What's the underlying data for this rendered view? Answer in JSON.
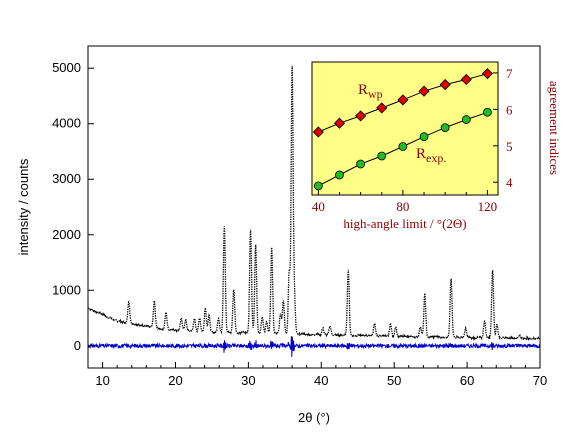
{
  "chart_data": [
    {
      "type": "line",
      "xlabel": "2θ (°)",
      "ylabel": "intensity / counts",
      "xlim": [
        8,
        70
      ],
      "ylim": [
        -400,
        5400
      ],
      "x_ticks": [
        10,
        20,
        30,
        40,
        50,
        60,
        70
      ],
      "y_ticks": [
        0,
        1000,
        2000,
        3000,
        4000,
        5000
      ],
      "grid": false,
      "series": [
        {
          "color": "#000000",
          "style": "dotted",
          "baseline": [
            [
              8,
              680
            ],
            [
              9,
              620
            ],
            [
              10,
              560
            ],
            [
              11,
              500
            ],
            [
              12,
              450
            ],
            [
              14,
              400
            ],
            [
              16,
              350
            ],
            [
              18,
              310
            ],
            [
              20,
              280
            ],
            [
              22,
              265
            ],
            [
              24,
              255
            ],
            [
              26,
              245
            ],
            [
              28,
              240
            ],
            [
              30,
              240
            ],
            [
              32,
              235
            ],
            [
              34,
              225
            ],
            [
              36,
              215
            ],
            [
              38,
              205
            ],
            [
              40,
              200
            ],
            [
              45,
              185
            ],
            [
              50,
              170
            ],
            [
              55,
              160
            ],
            [
              60,
              150
            ],
            [
              65,
              140
            ],
            [
              70,
              130
            ]
          ],
          "peaks": [
            [
              13.6,
              390
            ],
            [
              17.1,
              470
            ],
            [
              18.7,
              300
            ],
            [
              20.8,
              220
            ],
            [
              21.4,
              200
            ],
            [
              22.6,
              230
            ],
            [
              23.3,
              240
            ],
            [
              24.1,
              430
            ],
            [
              24.6,
              300
            ],
            [
              25.9,
              260
            ],
            [
              26.7,
              1920
            ],
            [
              28.0,
              780
            ],
            [
              30.3,
              1850
            ],
            [
              31.0,
              1580
            ],
            [
              31.9,
              280
            ],
            [
              32.5,
              200
            ],
            [
              33.2,
              1530
            ],
            [
              34.4,
              350
            ],
            [
              34.8,
              600
            ],
            [
              35.6,
              1100
            ],
            [
              36.0,
              4780
            ],
            [
              36.3,
              700
            ],
            [
              40.2,
              120
            ],
            [
              41.2,
              160
            ],
            [
              43.7,
              1180
            ],
            [
              47.3,
              230
            ],
            [
              49.5,
              230
            ],
            [
              50.2,
              180
            ],
            [
              53.6,
              180
            ],
            [
              54.2,
              770
            ],
            [
              57.8,
              1050
            ],
            [
              59.8,
              160
            ],
            [
              62.4,
              310
            ],
            [
              63.5,
              1230
            ],
            [
              64.1,
              250
            ],
            [
              67.2,
              60
            ]
          ]
        },
        {
          "color": "#0000cc",
          "style": "solid",
          "baseline": [
            [
              8,
              0
            ],
            [
              70,
              0
            ]
          ]
        }
      ]
    },
    {
      "type": "scatter",
      "xlabel": "high-angle limit / °(2Θ)",
      "ylabel": "agreement indices",
      "xlim": [
        37,
        125
      ],
      "ylim": [
        3.65,
        7.3
      ],
      "x_ticks": [
        40,
        80,
        120
      ],
      "y_ticks": [
        4,
        5,
        6,
        7
      ],
      "background": "#ffff88",
      "accent_color": "#8b0000",
      "series": [
        {
          "label_main": "R",
          "label_sub": "wp",
          "color": "#dd0000",
          "marker": "diamond",
          "x": [
            40,
            50,
            60,
            70,
            80,
            90,
            100,
            110,
            120
          ],
          "values": [
            5.38,
            5.62,
            5.82,
            6.04,
            6.26,
            6.5,
            6.68,
            6.82,
            6.98
          ]
        },
        {
          "label_main": "R",
          "label_sub": "exp.",
          "color": "#22bb22",
          "marker": "circle",
          "x": [
            40,
            50,
            60,
            70,
            80,
            90,
            100,
            110,
            120
          ],
          "values": [
            3.9,
            4.2,
            4.5,
            4.72,
            4.98,
            5.25,
            5.5,
            5.72,
            5.92
          ]
        }
      ]
    }
  ]
}
